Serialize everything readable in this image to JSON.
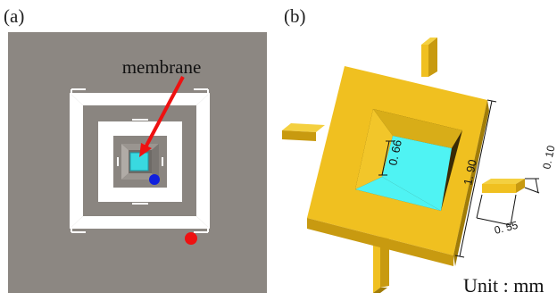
{
  "panels": {
    "a": {
      "label": "(a)",
      "annotation": "membrane"
    },
    "b": {
      "label": "(b)",
      "dimensions": {
        "inner": "0. 66",
        "outer": "1. 90",
        "arm_thickness": "0. 10",
        "arm_width": "0. 55"
      },
      "unit_text": "Unit : mm"
    }
  },
  "colors": {
    "background_gray": "#8a8580",
    "frame_white": "#ffffff",
    "membrane_cyan": "#39d9e0",
    "arrow_red": "#ee1111",
    "dot_red": "#ee1111",
    "dot_blue": "#1020dd",
    "gold": "#f0c020",
    "gold_dark": "#c89a10",
    "gold_shadow": "#a07c08",
    "cyan_3d": "#4ff3f3"
  }
}
